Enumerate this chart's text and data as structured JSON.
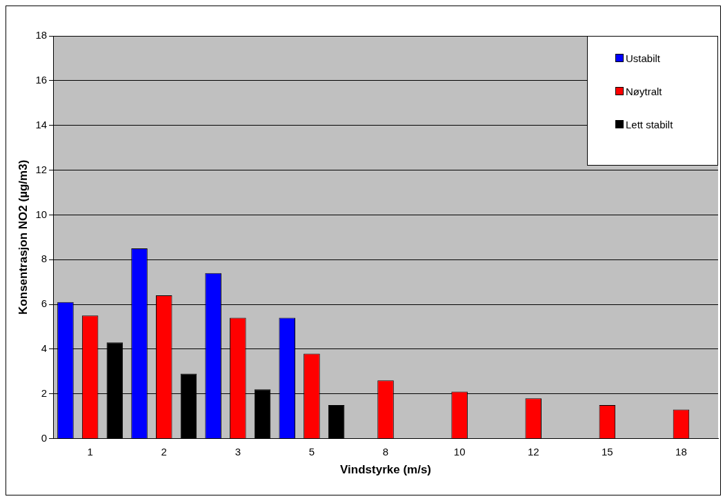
{
  "chart_data": {
    "type": "bar",
    "xlabel": "Vindstyrke (m/s)",
    "ylabel": "Konsentrasjon NO2 (µg/m3)",
    "categories": [
      "1",
      "2",
      "3",
      "5",
      "8",
      "10",
      "12",
      "15",
      "18"
    ],
    "series": [
      {
        "name": "Ustabilt",
        "color": "#0000ff",
        "values": [
          6.1,
          8.5,
          7.4,
          5.4,
          null,
          null,
          null,
          null,
          null
        ]
      },
      {
        "name": "Nøytralt",
        "color": "#ff0000",
        "values": [
          5.5,
          6.4,
          5.4,
          3.8,
          2.6,
          2.1,
          1.8,
          1.5,
          1.3
        ]
      },
      {
        "name": "Lett stabilt",
        "color": "#000000",
        "values": [
          4.3,
          2.9,
          2.2,
          1.5,
          null,
          null,
          null,
          null,
          null
        ]
      }
    ],
    "ylim": [
      0,
      18
    ],
    "yticks": [
      0,
      2,
      4,
      6,
      8,
      10,
      12,
      14,
      16,
      18
    ],
    "grid": "y",
    "legend": "top right"
  }
}
